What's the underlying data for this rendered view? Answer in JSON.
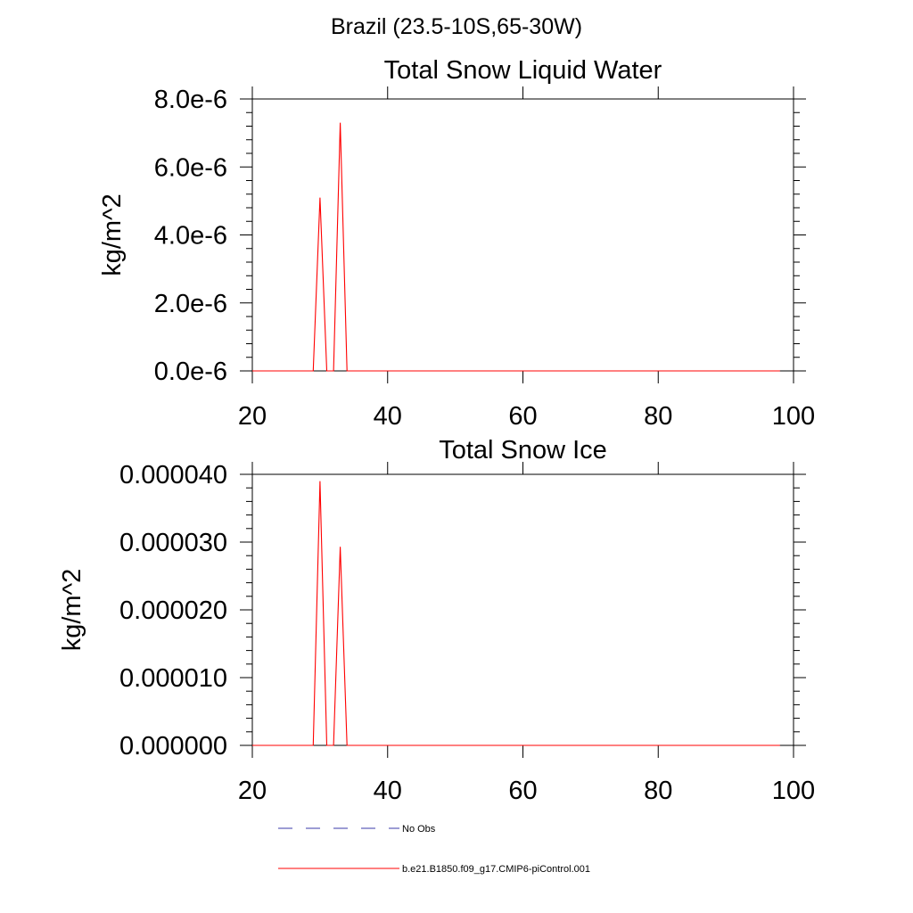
{
  "figure": {
    "suptitle": "Brazil (23.5-10S,65-30W)"
  },
  "colors": {
    "model": "#ff0000",
    "obs": "#3a3aa8",
    "axis": "#000000"
  },
  "legend": {
    "placement": "bottom",
    "items": [
      {
        "label": "No Obs",
        "style": "dashed",
        "color": "#3a3aa8"
      },
      {
        "label": "b.e21.B1850.f09_g17.CMIP6-piControl.001",
        "style": "solid",
        "color": "#ff0000"
      }
    ]
  },
  "chart_data": [
    {
      "type": "line",
      "title": "Total Snow Liquid Water",
      "xlabel": "",
      "ylabel": "kg/m^2",
      "xlim": [
        20,
        100
      ],
      "ylim": [
        0,
        8e-06
      ],
      "xticks": [
        20,
        40,
        60,
        80,
        100
      ],
      "xtick_labels": [
        "20",
        "40",
        "60",
        "80",
        "100"
      ],
      "yticks": [
        0,
        2e-06,
        4e-06,
        6e-06,
        8e-06
      ],
      "ytick_labels": [
        "0.0e-6",
        "2.0e-6",
        "4.0e-6",
        "6.0e-6",
        "8.0e-6"
      ],
      "grid": false,
      "series": [
        {
          "name": "b.e21.B1850.f09_g17.CMIP6-piControl.001",
          "color": "#ff0000",
          "x": [
            20,
            29,
            30,
            31,
            32,
            33,
            34,
            98
          ],
          "y": [
            0,
            0,
            5.1e-06,
            0,
            0,
            7.3e-06,
            0,
            0
          ]
        }
      ]
    },
    {
      "type": "line",
      "title": "Total Snow Ice",
      "xlabel": "",
      "ylabel": "kg/m^2",
      "xlim": [
        20,
        100
      ],
      "ylim": [
        0,
        4e-05
      ],
      "xticks": [
        20,
        40,
        60,
        80,
        100
      ],
      "xtick_labels": [
        "20",
        "40",
        "60",
        "80",
        "100"
      ],
      "yticks": [
        0,
        1e-05,
        2e-05,
        3e-05,
        4e-05
      ],
      "ytick_labels": [
        "0.000000",
        "0.000010",
        "0.000020",
        "0.000030",
        "0.000040"
      ],
      "grid": false,
      "series": [
        {
          "name": "b.e21.B1850.f09_g17.CMIP6-piControl.001",
          "color": "#ff0000",
          "x": [
            20,
            29,
            30,
            31,
            32,
            33,
            34,
            98
          ],
          "y": [
            0,
            0,
            3.9e-05,
            0,
            0,
            2.93e-05,
            0,
            0
          ]
        }
      ]
    }
  ]
}
